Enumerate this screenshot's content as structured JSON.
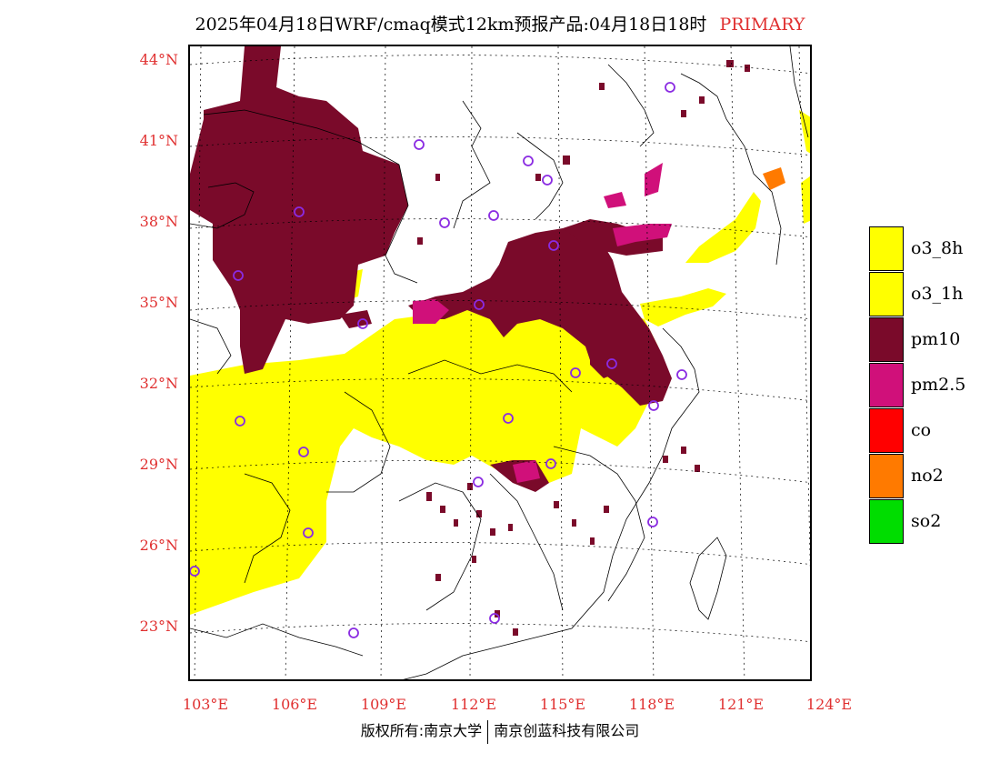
{
  "title": {
    "main": "2025年04月18日WRF/cmaq模式12km预报产品:04月18日18时",
    "pollutant": "PRIMARY"
  },
  "axes": {
    "lat_labels": [
      "44°N",
      "41°N",
      "38°N",
      "35°N",
      "32°N",
      "29°N",
      "26°N",
      "23°N"
    ],
    "lon_labels": [
      "103°E",
      "106°E",
      "109°E",
      "112°E",
      "115°E",
      "118°E",
      "121°E",
      "124°E"
    ],
    "label_color": "#e03030"
  },
  "legend": [
    {
      "label": "o3_8h",
      "color": "#ffff00"
    },
    {
      "label": "o3_1h",
      "color": "#ffff00"
    },
    {
      "label": "pm10",
      "color": "#7a0a2a"
    },
    {
      "label": "pm2.5",
      "color": "#d0107a"
    },
    {
      "label": "co",
      "color": "#ff0000"
    },
    {
      "label": "no2",
      "color": "#ff7a00"
    },
    {
      "label": "so2",
      "color": "#00dd00"
    }
  ],
  "copyright": {
    "left": "版权所有:南京大学",
    "right": "南京创蓝科技有限公司"
  }
}
